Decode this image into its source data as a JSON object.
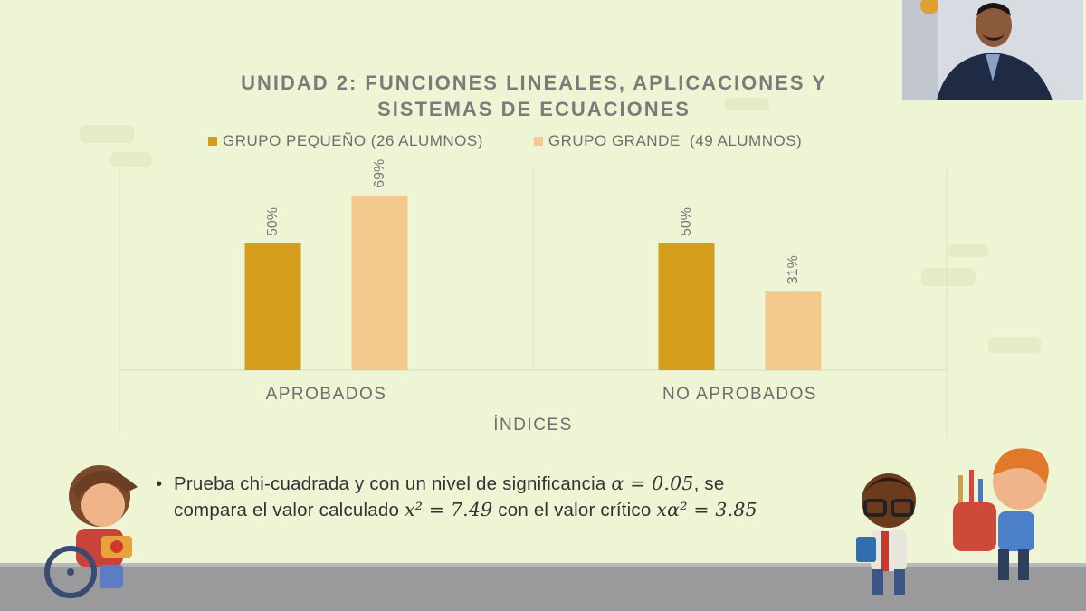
{
  "chart_data": {
    "type": "bar",
    "title_lines": [
      "UNIDAD 2: FUNCIONES LINEALES, APLICACIONES Y",
      "SISTEMAS DE ECUACIONES"
    ],
    "xlabel": "ÍNDICES",
    "categories": [
      "APROBADOS",
      "NO APROBADOS"
    ],
    "series": [
      {
        "name": "GRUPO PEQUEÑO (26 ALUMNOS)",
        "color": "#d49d1c",
        "values": [
          50,
          50
        ],
        "labels": [
          "50%",
          "50%"
        ]
      },
      {
        "name": "GRUPO GRANDE  (49 ALUMNOS)",
        "color": "#f4c98d",
        "values": [
          69,
          31
        ],
        "labels": [
          "69%",
          "31%"
        ]
      }
    ],
    "ylim": [
      0,
      100
    ],
    "legend_position": "top",
    "grid": false
  },
  "bullet": {
    "marker": "•",
    "line1_text": "Prueba chi-cuadrada y con un nivel de significancia ",
    "line1_math": "α = 0.05",
    "line1_end": ", se",
    "line2_text": "compara el valor calculado ",
    "line2_math1": "x² = 7.49",
    "line2_mid": " con el valor crítico ",
    "line2_math2": "xα² = 3.85"
  },
  "webcam": {
    "icon": "presenter-video-feed"
  },
  "decorations": {
    "icons": [
      "student-wheelchair-illustration",
      "student-glasses-illustration",
      "student-backpack-illustration"
    ]
  }
}
